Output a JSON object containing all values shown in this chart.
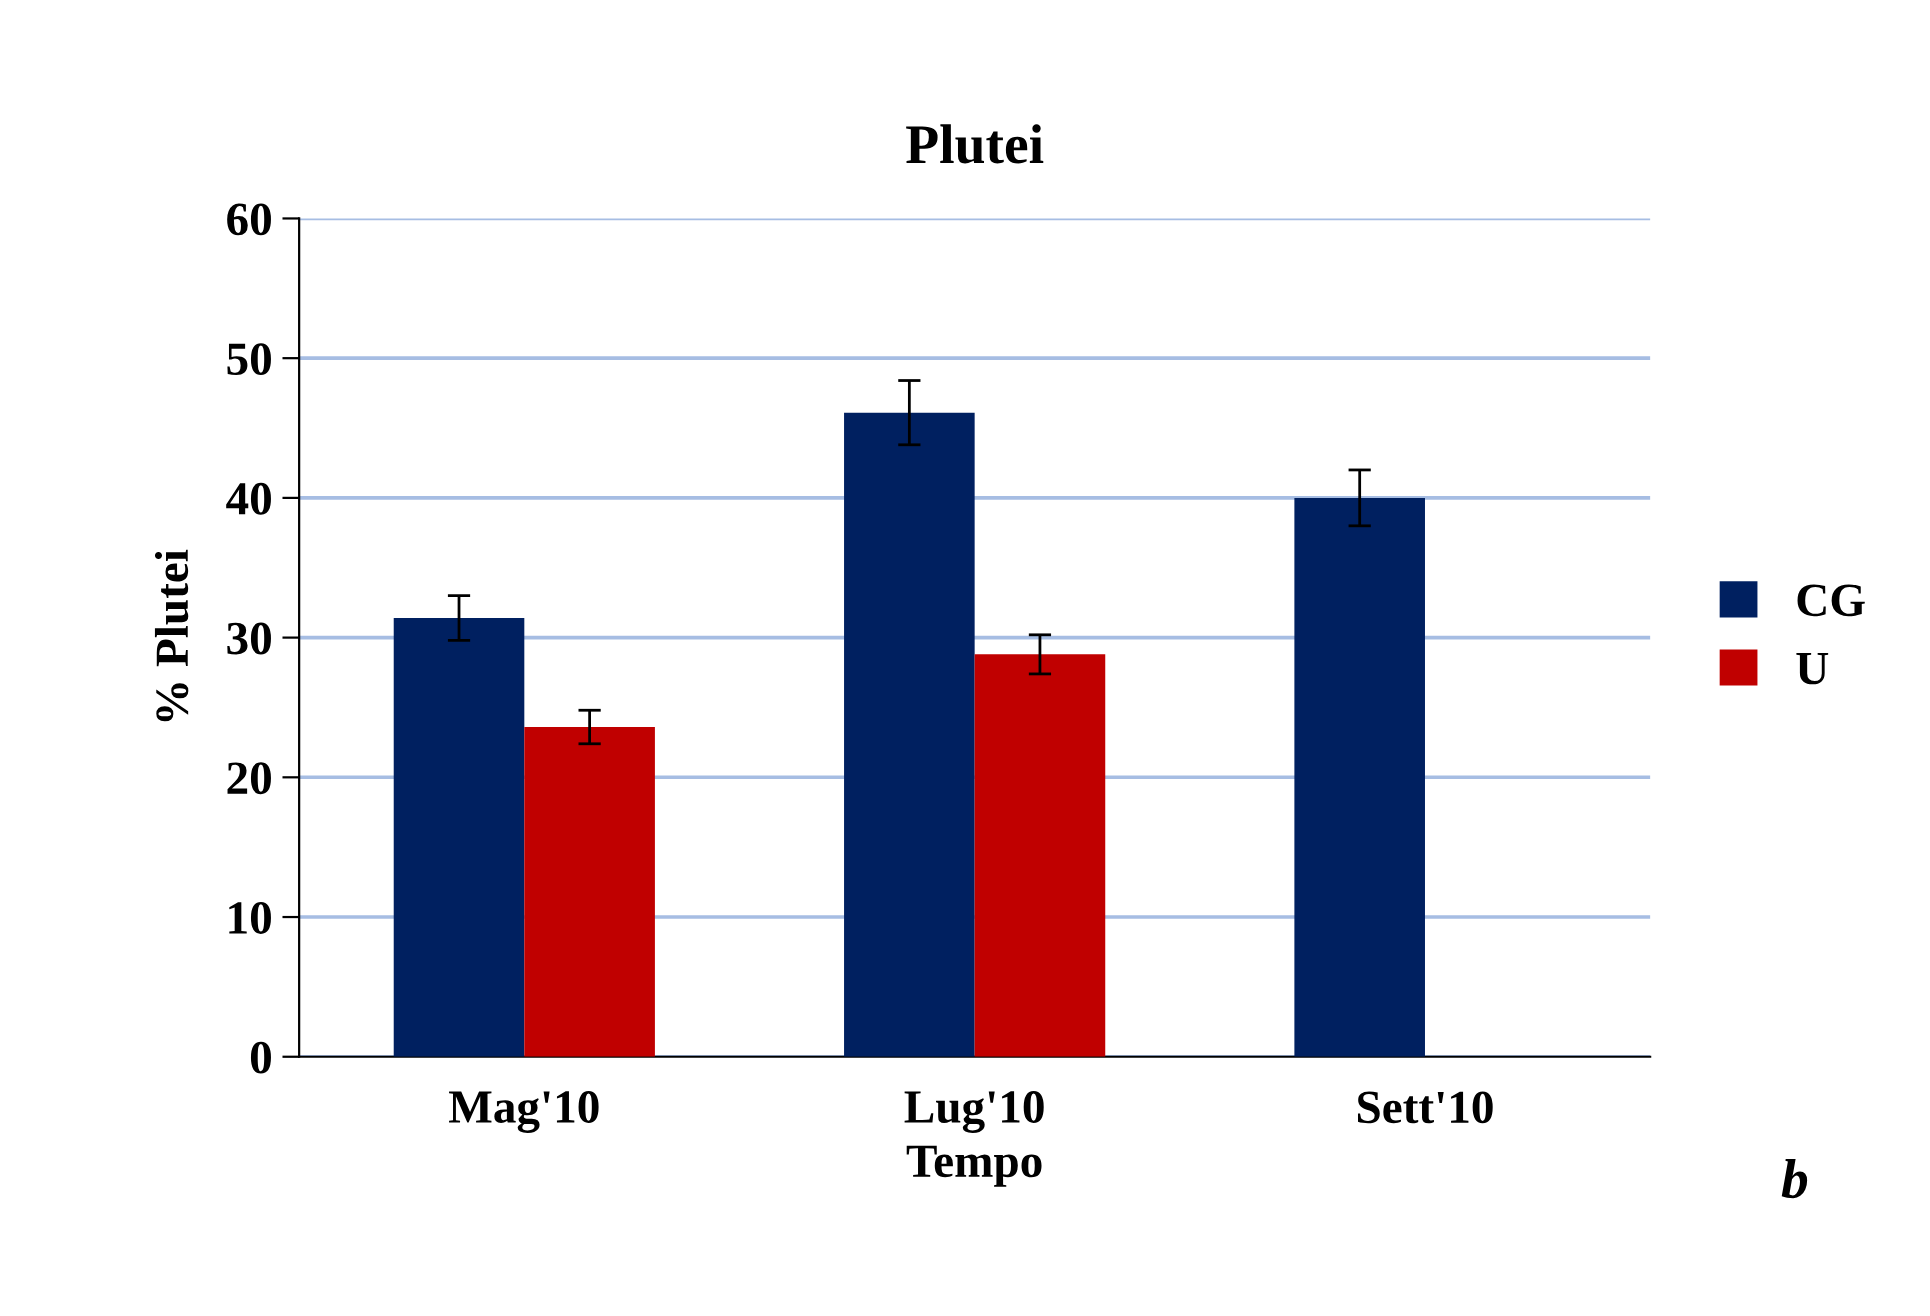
{
  "chart_data": {
    "type": "bar",
    "title": "Plutei",
    "xlabel": "Tempo",
    "ylabel": "% Plutei",
    "categories": [
      "Mag'10",
      "Lug'10",
      "Sett'10"
    ],
    "series": [
      {
        "name": "CG",
        "color": "#002060",
        "values": [
          31.4,
          46.1,
          40.0
        ],
        "errors": [
          1.6,
          2.3,
          2.0
        ]
      },
      {
        "name": "U",
        "color": "#c00000",
        "values": [
          23.6,
          28.8,
          null
        ],
        "errors": [
          1.2,
          1.4,
          null
        ]
      }
    ],
    "ylim": [
      0,
      60
    ],
    "yticks": [
      0,
      10,
      20,
      30,
      40,
      50,
      60
    ],
    "grid": "y",
    "legend": "right",
    "annotations": [
      "b"
    ]
  }
}
